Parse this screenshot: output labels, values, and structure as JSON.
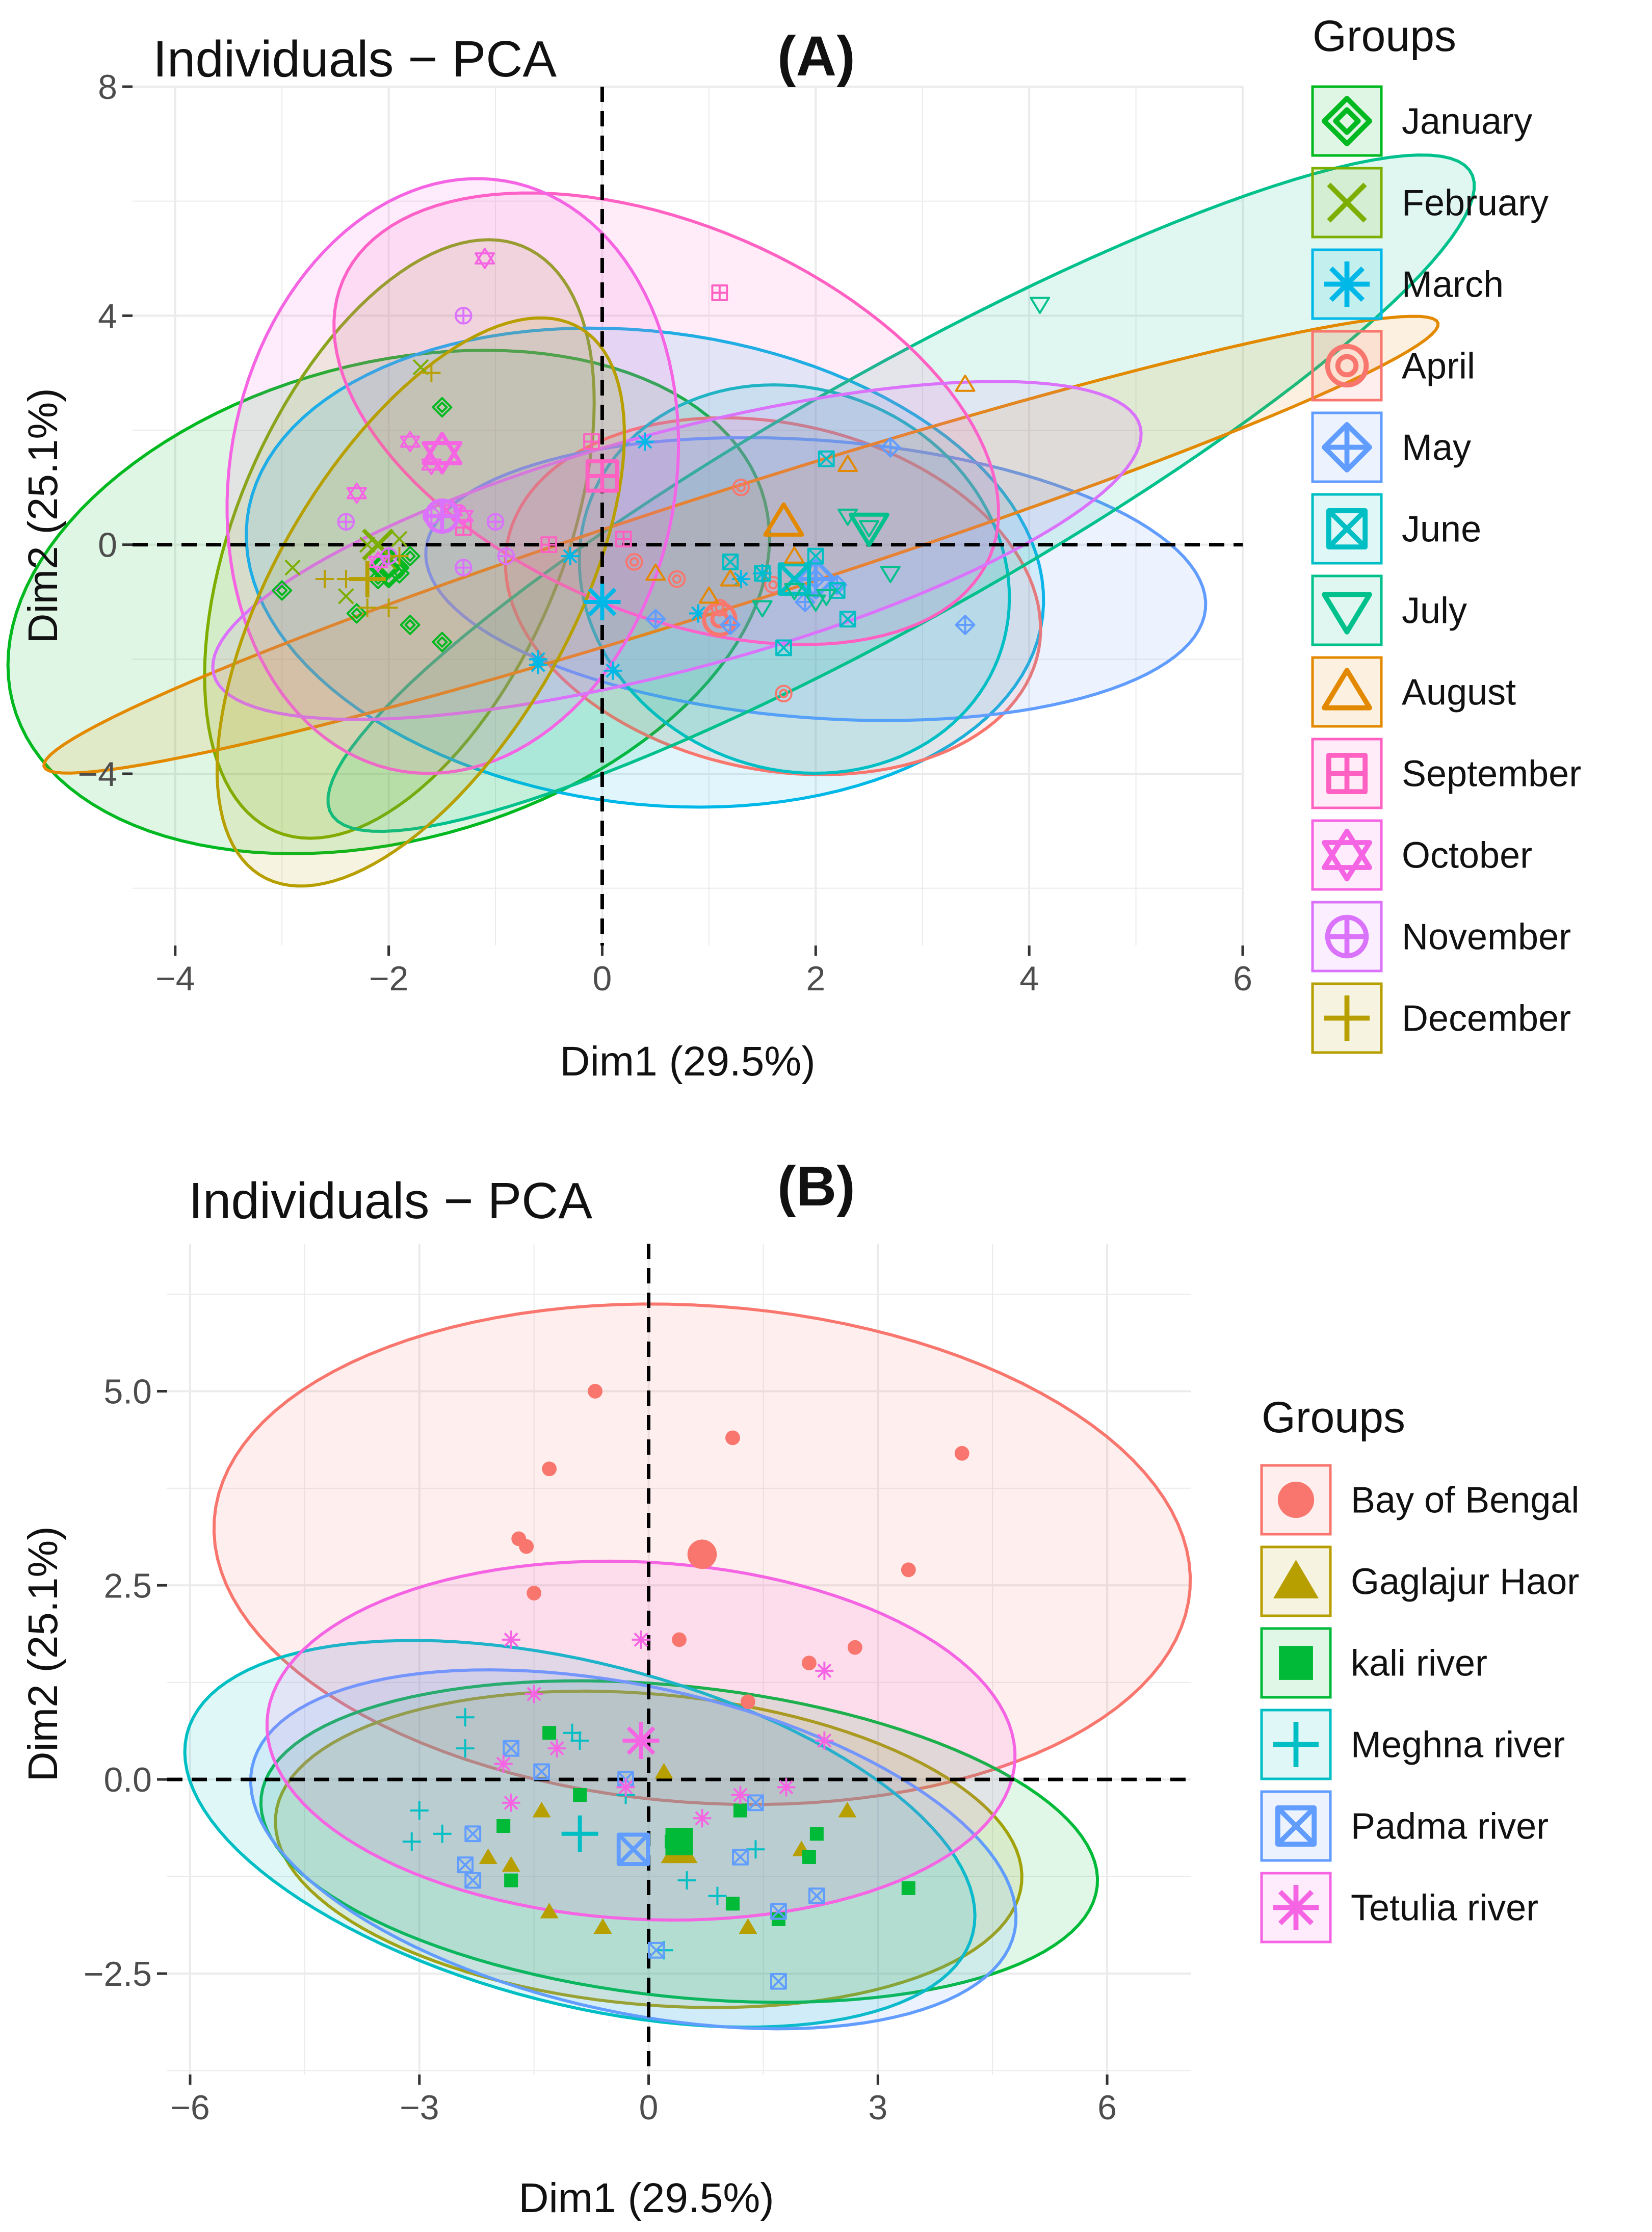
{
  "chart_data": [
    {
      "type": "scatter",
      "panel_label": "(A)",
      "title": "Individuals − PCA",
      "xlabel": "Dim1 (29.5%)",
      "ylabel": "Dim2 (25.1%)",
      "xlim": [
        -4.4,
        6.0
      ],
      "ylim": [
        -7.0,
        8.0
      ],
      "xticks": [
        -4,
        -2,
        0,
        2,
        4,
        6
      ],
      "xtick_labels": [
        "−4",
        "−2",
        "0",
        "2",
        "4",
        "6"
      ],
      "yticks": [
        -4,
        0,
        4,
        8
      ],
      "ytick_labels": [
        "−4",
        "0",
        "4",
        "8"
      ],
      "legend_title": "Groups",
      "legend_position": "right",
      "ref_lines": {
        "x": 0,
        "y": 0
      },
      "series": [
        {
          "name": "January",
          "color": "#00B81F",
          "marker": "diamond-in-diamond",
          "centroid": [
            -2.0,
            -0.4
          ],
          "ellipse": {
            "cx": -2.0,
            "cy": -1.0,
            "rx": 3.3,
            "ry": 4.6,
            "angle": -25
          },
          "points": [
            [
              -3.0,
              -0.8
            ],
            [
              -2.3,
              -1.2
            ],
            [
              -1.8,
              -1.4
            ],
            [
              -1.5,
              -1.7
            ],
            [
              -1.5,
              2.4
            ],
            [
              -1.9,
              -0.5
            ],
            [
              -1.8,
              -0.2
            ],
            [
              -2.1,
              -0.6
            ]
          ]
        },
        {
          "name": "February",
          "color": "#7CAE00",
          "marker": "x",
          "centroid": [
            -2.1,
            0.0
          ],
          "ellipse": {
            "cx": -1.9,
            "cy": 0.1,
            "rx": 1.6,
            "ry": 5.3,
            "angle": -10
          },
          "points": [
            [
              -2.9,
              -0.4
            ],
            [
              -1.7,
              3.1
            ],
            [
              -2.0,
              -0.3
            ],
            [
              -2.2,
              0.0
            ],
            [
              -1.9,
              0.1
            ],
            [
              -2.4,
              -0.9
            ]
          ]
        },
        {
          "name": "March",
          "color": "#00B8E7",
          "marker": "asterisk",
          "centroid": [
            0.0,
            -1.0
          ],
          "ellipse": {
            "cx": 0.4,
            "cy": -0.4,
            "rx": 3.6,
            "ry": 4.3,
            "angle": 25
          },
          "points": [
            [
              0.4,
              1.8
            ],
            [
              0.9,
              -1.2
            ],
            [
              0.1,
              -2.2
            ],
            [
              -0.6,
              -2.0
            ],
            [
              -0.3,
              -0.2
            ],
            [
              1.3,
              -0.6
            ],
            [
              1.5,
              -0.5
            ],
            [
              -0.6,
              -2.1
            ]
          ]
        },
        {
          "name": "April",
          "color": "#F8766D",
          "marker": "circle-in-circle",
          "centroid": [
            1.1,
            -1.3
          ],
          "ellipse": {
            "cx": 1.6,
            "cy": -0.9,
            "rx": 2.4,
            "ry": 3.2,
            "angle": 20
          },
          "points": [
            [
              1.3,
              1.0
            ],
            [
              1.7,
              -2.6
            ],
            [
              0.7,
              -0.6
            ],
            [
              1.1,
              -1.1
            ],
            [
              1.6,
              -0.7
            ],
            [
              0.3,
              -0.3
            ]
          ]
        },
        {
          "name": "May",
          "color": "#619CFF",
          "marker": "diamond-plus",
          "centroid": [
            2.0,
            -0.6
          ],
          "ellipse": {
            "cx": 2.0,
            "cy": -0.6,
            "rx": 3.7,
            "ry": 2.4,
            "angle": -12
          },
          "points": [
            [
              2.7,
              1.7
            ],
            [
              3.4,
              -1.4
            ],
            [
              2.0,
              -0.6
            ],
            [
              1.2,
              -1.4
            ],
            [
              0.5,
              -1.3
            ],
            [
              2.2,
              -0.7
            ],
            [
              1.9,
              -1.0
            ]
          ]
        },
        {
          "name": "June",
          "color": "#00BFC4",
          "marker": "square-x",
          "centroid": [
            1.8,
            -0.6
          ],
          "ellipse": {
            "cx": 1.8,
            "cy": -0.6,
            "rx": 2.0,
            "ry": 3.4,
            "angle": 5
          },
          "points": [
            [
              2.1,
              1.5
            ],
            [
              1.7,
              -1.8
            ],
            [
              2.3,
              -1.3
            ],
            [
              1.5,
              -0.5
            ],
            [
              1.2,
              -0.3
            ],
            [
              2.0,
              -0.2
            ],
            [
              2.2,
              -0.8
            ]
          ]
        },
        {
          "name": "July",
          "color": "#00C08B",
          "marker": "triangle-down",
          "centroid": [
            2.5,
            0.3
          ],
          "ellipse": {
            "cx": 2.8,
            "cy": 0.9,
            "rx": 1.7,
            "ry": 7.8,
            "angle": -42
          },
          "points": [
            [
              4.1,
              4.2
            ],
            [
              2.3,
              0.5
            ],
            [
              2.7,
              -0.5
            ],
            [
              2.5,
              0.3
            ],
            [
              2.1,
              -0.9
            ],
            [
              2.0,
              -1.0
            ],
            [
              1.5,
              -1.1
            ],
            [
              1.8,
              -0.8
            ]
          ]
        },
        {
          "name": "August",
          "color": "#E38900",
          "marker": "triangle-up",
          "centroid": [
            1.7,
            0.4
          ],
          "ellipse": {
            "cx": 1.3,
            "cy": 0.0,
            "rx": 0.9,
            "ry": 7.6,
            "angle": -59
          },
          "points": [
            [
              3.4,
              2.8
            ],
            [
              2.3,
              1.4
            ],
            [
              1.8,
              -0.2
            ],
            [
              0.5,
              -0.5
            ],
            [
              1.2,
              -0.6
            ],
            [
              1.0,
              -0.9
            ]
          ]
        },
        {
          "name": "September",
          "color": "#FF61C3",
          "marker": "square-plus",
          "centroid": [
            0.0,
            1.2
          ],
          "ellipse": {
            "cx": 0.6,
            "cy": 2.2,
            "rx": 2.6,
            "ry": 4.3,
            "angle": 30
          },
          "points": [
            [
              1.1,
              4.4
            ],
            [
              -0.1,
              1.8
            ],
            [
              0.2,
              0.1
            ],
            [
              -0.5,
              0.0
            ],
            [
              -1.3,
              0.3
            ]
          ]
        },
        {
          "name": "October",
          "color": "#F564E3",
          "marker": "star-of-david",
          "centroid": [
            -1.5,
            1.6
          ],
          "ellipse": {
            "cx": -1.4,
            "cy": 1.2,
            "rx": 2.1,
            "ry": 5.2,
            "angle": -3
          },
          "points": [
            [
              -1.1,
              5.0
            ],
            [
              -1.8,
              1.8
            ],
            [
              -2.3,
              0.9
            ],
            [
              -1.4,
              0.6
            ],
            [
              -1.3,
              0.5
            ],
            [
              -1.6,
              1.4
            ],
            [
              -2.1,
              -0.3
            ]
          ]
        },
        {
          "name": "November",
          "color": "#DB72FB",
          "marker": "circle-plus",
          "centroid": [
            -1.5,
            0.5
          ],
          "ellipse": {
            "cx": 0.7,
            "cy": -0.1,
            "rx": 1.9,
            "ry": 4.9,
            "angle": -60
          },
          "points": [
            [
              -1.3,
              4.0
            ],
            [
              -2.4,
              0.4
            ],
            [
              -1.0,
              0.4
            ],
            [
              -1.3,
              -0.4
            ],
            [
              -0.9,
              -0.2
            ],
            [
              -1.6,
              0.5
            ],
            [
              -2.0,
              -0.2
            ]
          ]
        },
        {
          "name": "December",
          "color": "#B79F00",
          "marker": "plus",
          "centroid": [
            -2.2,
            -0.6
          ],
          "ellipse": {
            "cx": -1.7,
            "cy": -1.0,
            "rx": 1.5,
            "ry": 5.1,
            "angle": -14
          },
          "points": [
            [
              -1.6,
              3.0
            ],
            [
              -2.6,
              -0.6
            ],
            [
              -2.4,
              -0.6
            ],
            [
              -2.0,
              -1.1
            ],
            [
              -2.2,
              -1.1
            ],
            [
              -1.9,
              -0.2
            ]
          ]
        }
      ]
    },
    {
      "type": "scatter",
      "panel_label": "(B)",
      "title": "Individuals − PCA",
      "xlabel": "Dim1 (29.5%)",
      "ylabel": "Dim2 (25.1%)",
      "xlim": [
        -6.3,
        7.1
      ],
      "ylim": [
        -3.8,
        6.9
      ],
      "xticks": [
        -6,
        -3,
        0,
        3,
        6
      ],
      "xtick_labels": [
        "−6",
        "−3",
        "0",
        "3",
        "6"
      ],
      "yticks": [
        -2.5,
        0.0,
        2.5,
        5.0
      ],
      "ytick_labels": [
        "−2.5",
        "0.0",
        "2.5",
        "5.0"
      ],
      "legend_title": "Groups",
      "legend_position": "right",
      "ref_lines": {
        "x": 0,
        "y": 0
      },
      "series": [
        {
          "name": "Bay of Bengal",
          "color": "#F8766D",
          "marker": "circle",
          "centroid": [
            0.7,
            2.9
          ],
          "ellipse": {
            "cx": 0.7,
            "cy": 2.9,
            "rx": 6.4,
            "ry": 3.2,
            "angle": -4
          },
          "points": [
            [
              -0.7,
              5.0
            ],
            [
              1.1,
              4.4
            ],
            [
              4.1,
              4.2
            ],
            [
              -1.3,
              4.0
            ],
            [
              -1.7,
              3.1
            ],
            [
              -1.6,
              3.0
            ],
            [
              -1.5,
              2.4
            ],
            [
              3.4,
              2.7
            ],
            [
              0.4,
              1.8
            ],
            [
              2.7,
              1.7
            ],
            [
              2.1,
              1.5
            ],
            [
              1.3,
              1.0
            ]
          ]
        },
        {
          "name": "Gaglajur Haor",
          "color": "#B79F00",
          "marker": "triangle",
          "centroid": [
            0.4,
            -0.9
          ],
          "ellipse": {
            "cx": 0.0,
            "cy": -0.9,
            "rx": 4.9,
            "ry": 2.0,
            "angle": -5
          },
          "points": [
            [
              -1.4,
              -0.4
            ],
            [
              -2.1,
              -1.0
            ],
            [
              -1.3,
              -1.7
            ],
            [
              -0.6,
              -1.9
            ],
            [
              0.2,
              0.1
            ],
            [
              1.3,
              -1.9
            ],
            [
              2.6,
              -0.4
            ],
            [
              2.0,
              -0.9
            ],
            [
              -1.8,
              -1.1
            ]
          ]
        },
        {
          "name": "kali river",
          "color": "#00BA38",
          "marker": "square",
          "centroid": [
            0.4,
            -0.8
          ],
          "ellipse": {
            "cx": 0.4,
            "cy": -0.8,
            "rx": 5.5,
            "ry": 2.0,
            "angle": -6
          },
          "points": [
            [
              -1.3,
              0.6
            ],
            [
              -1.9,
              -0.6
            ],
            [
              -1.8,
              -1.3
            ],
            [
              -0.9,
              -0.2
            ],
            [
              1.2,
              -0.4
            ],
            [
              1.1,
              -1.6
            ],
            [
              1.7,
              -1.8
            ],
            [
              2.2,
              -0.7
            ],
            [
              3.4,
              -1.4
            ],
            [
              2.1,
              -1.0
            ],
            [
              0.3,
              -0.8
            ]
          ]
        },
        {
          "name": "Meghna river",
          "color": "#00BFC4",
          "marker": "plus",
          "centroid": [
            -0.9,
            -0.7
          ],
          "ellipse": {
            "cx": -0.9,
            "cy": -0.7,
            "rx": 5.3,
            "ry": 2.2,
            "angle": -14
          },
          "points": [
            [
              -3.0,
              -0.4
            ],
            [
              -3.1,
              -0.8
            ],
            [
              -2.4,
              0.8
            ],
            [
              -2.4,
              0.4
            ],
            [
              -1.0,
              0.6
            ],
            [
              -0.9,
              0.5
            ],
            [
              -0.3,
              -0.2
            ],
            [
              0.5,
              -1.3
            ],
            [
              0.9,
              -1.5
            ],
            [
              1.4,
              -0.9
            ],
            [
              0.2,
              -2.2
            ],
            [
              -2.7,
              -0.7
            ]
          ]
        },
        {
          "name": "Padma river",
          "color": "#619CFF",
          "marker": "square-x",
          "centroid": [
            -0.2,
            -0.9
          ],
          "ellipse": {
            "cx": -0.2,
            "cy": -0.9,
            "rx": 5.1,
            "ry": 2.1,
            "angle": -12
          },
          "points": [
            [
              -2.3,
              -0.7
            ],
            [
              -2.4,
              -1.1
            ],
            [
              -2.3,
              -1.3
            ],
            [
              -1.8,
              0.4
            ],
            [
              -1.4,
              0.1
            ],
            [
              -0.3,
              0.0
            ],
            [
              1.2,
              -1.0
            ],
            [
              1.4,
              -0.3
            ],
            [
              1.7,
              -1.7
            ],
            [
              2.2,
              -1.5
            ],
            [
              1.7,
              -2.6
            ],
            [
              0.1,
              -2.2
            ]
          ]
        },
        {
          "name": "Tetulia river",
          "color": "#F564E3",
          "marker": "asterisk",
          "centroid": [
            -0.1,
            0.5
          ],
          "ellipse": {
            "cx": -0.1,
            "cy": 0.5,
            "rx": 4.9,
            "ry": 2.3,
            "angle": -3
          },
          "points": [
            [
              -1.8,
              1.8
            ],
            [
              -0.1,
              1.8
            ],
            [
              2.3,
              1.4
            ],
            [
              -1.5,
              1.1
            ],
            [
              2.3,
              0.5
            ],
            [
              -1.8,
              -0.3
            ],
            [
              -1.9,
              0.2
            ],
            [
              -1.2,
              0.4
            ],
            [
              -0.3,
              -0.1
            ],
            [
              0.7,
              -0.5
            ],
            [
              1.2,
              -0.2
            ],
            [
              1.8,
              -0.1
            ]
          ]
        }
      ]
    }
  ]
}
